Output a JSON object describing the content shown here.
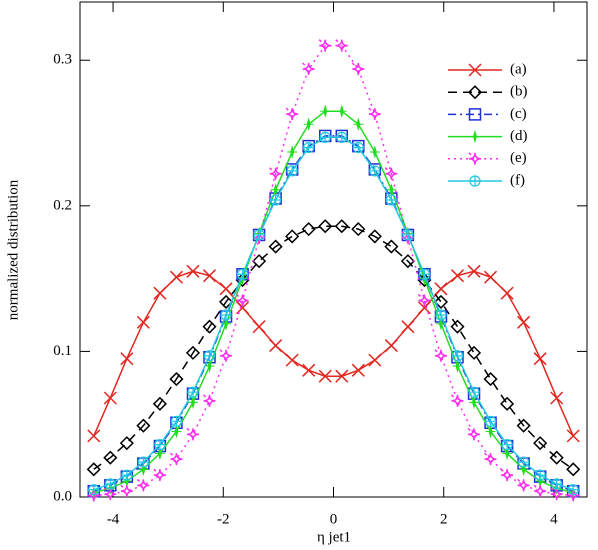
{
  "chart_data": {
    "type": "line",
    "x_label": "η jet1",
    "y_label": "normalized distribution",
    "xlim": [
      -4.6,
      4.6
    ],
    "ylim": [
      0,
      0.34
    ],
    "xticks": [
      -4,
      -2,
      0,
      2,
      4
    ],
    "yticks": [
      {
        "value": 0,
        "label": "0.0"
      },
      0.1,
      0.2,
      0.3
    ],
    "legend": "upper right",
    "x": [
      -4.35,
      -4.05,
      -3.75,
      -3.45,
      -3.15,
      -2.85,
      -2.55,
      -2.25,
      -1.95,
      -1.65,
      -1.35,
      -1.05,
      -0.75,
      -0.45,
      -0.15,
      0.15,
      0.45,
      0.75,
      1.05,
      1.35,
      1.65,
      1.95,
      2.25,
      2.55,
      2.85,
      3.15,
      3.45,
      3.75,
      4.05,
      4.35
    ],
    "series": [
      {
        "name": "(a)",
        "color": "#e3261f",
        "dash": "solid",
        "marker": "x",
        "values": [
          0.042,
          0.068,
          0.095,
          0.12,
          0.14,
          0.151,
          0.155,
          0.152,
          0.143,
          0.13,
          0.117,
          0.104,
          0.094,
          0.087,
          0.083,
          0.083,
          0.087,
          0.094,
          0.104,
          0.117,
          0.13,
          0.143,
          0.152,
          0.155,
          0.151,
          0.14,
          0.12,
          0.095,
          0.068,
          0.042
        ]
      },
      {
        "name": "(b)",
        "color": "#000000",
        "dash": "dashed",
        "marker": "diamond",
        "values": [
          0.019,
          0.027,
          0.037,
          0.049,
          0.064,
          0.081,
          0.099,
          0.117,
          0.134,
          0.149,
          0.162,
          0.172,
          0.179,
          0.184,
          0.186,
          0.186,
          0.184,
          0.179,
          0.172,
          0.162,
          0.149,
          0.134,
          0.117,
          0.099,
          0.081,
          0.064,
          0.049,
          0.037,
          0.027,
          0.019
        ]
      },
      {
        "name": "(c)",
        "color": "#1f2fd8",
        "dash": "dashdot",
        "marker": "square",
        "values": [
          0.004,
          0.008,
          0.014,
          0.023,
          0.035,
          0.051,
          0.071,
          0.096,
          0.124,
          0.153,
          0.18,
          0.205,
          0.225,
          0.241,
          0.248,
          0.248,
          0.241,
          0.225,
          0.205,
          0.18,
          0.153,
          0.124,
          0.096,
          0.071,
          0.051,
          0.035,
          0.023,
          0.014,
          0.008,
          0.004
        ]
      },
      {
        "name": "(d)",
        "color": "#22dd22",
        "dash": "solid",
        "marker": "star",
        "values": [
          0.003,
          0.006,
          0.011,
          0.019,
          0.03,
          0.045,
          0.065,
          0.09,
          0.119,
          0.15,
          0.181,
          0.211,
          0.237,
          0.256,
          0.265,
          0.265,
          0.256,
          0.237,
          0.211,
          0.181,
          0.15,
          0.119,
          0.09,
          0.065,
          0.045,
          0.03,
          0.019,
          0.011,
          0.006,
          0.003
        ]
      },
      {
        "name": "(e)",
        "color": "#ff2cf0",
        "dash": "dotted",
        "marker": "star4",
        "values": [
          0.001,
          0.002,
          0.004,
          0.008,
          0.015,
          0.026,
          0.043,
          0.066,
          0.097,
          0.135,
          0.178,
          0.222,
          0.263,
          0.294,
          0.31,
          0.31,
          0.294,
          0.263,
          0.222,
          0.178,
          0.135,
          0.097,
          0.066,
          0.043,
          0.026,
          0.015,
          0.008,
          0.004,
          0.002,
          0.001
        ]
      },
      {
        "name": "(f)",
        "color": "#22c8e0",
        "dash": "solid",
        "marker": "circleplus",
        "values": [
          0.005,
          0.009,
          0.015,
          0.024,
          0.036,
          0.052,
          0.072,
          0.097,
          0.125,
          0.153,
          0.18,
          0.204,
          0.224,
          0.24,
          0.247,
          0.247,
          0.24,
          0.224,
          0.204,
          0.18,
          0.153,
          0.125,
          0.097,
          0.072,
          0.052,
          0.036,
          0.024,
          0.015,
          0.009,
          0.005
        ]
      }
    ]
  }
}
